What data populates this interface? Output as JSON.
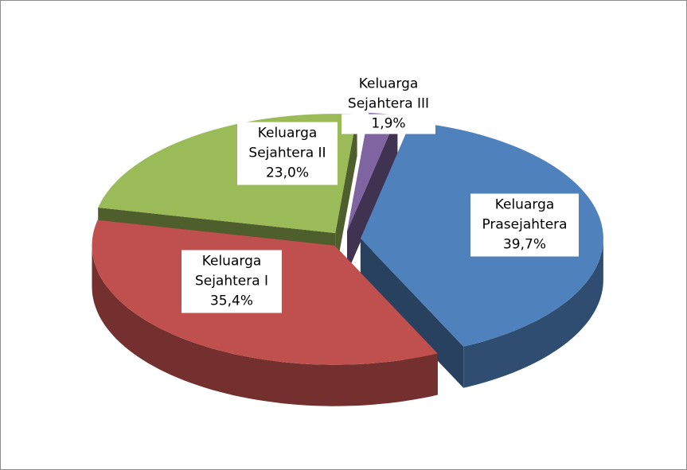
{
  "chart_data": {
    "type": "pie",
    "categories": [
      "Keluarga Prasejahtera",
      "Keluarga Sejahtera I",
      "Keluarga Sejahtera II",
      "Keluarga Sejahtera III"
    ],
    "values": [
      39.7,
      35.4,
      23.0,
      1.9
    ],
    "value_labels": [
      "39,7%",
      "35,4%",
      "23,0%",
      "1,9%"
    ],
    "colors": [
      "#4f81bd",
      "#c0504d",
      "#9bbb59",
      "#8064a2"
    ]
  }
}
